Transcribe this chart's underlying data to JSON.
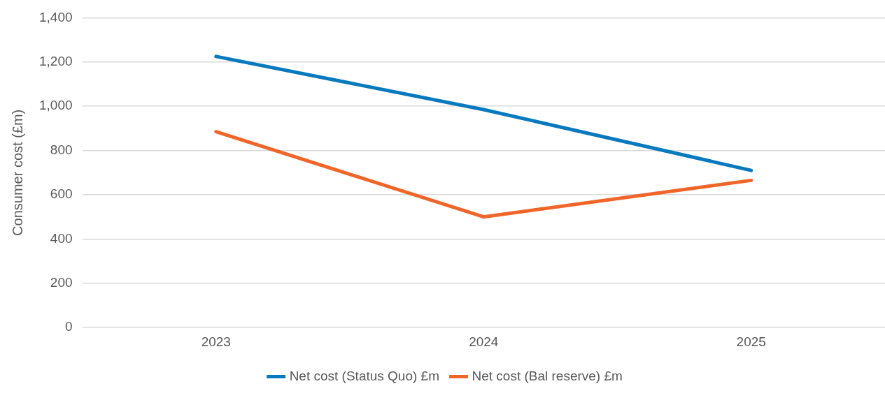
{
  "chart_data": {
    "type": "line",
    "ylabel": "Consumer cost (£m)",
    "categories": [
      "2023",
      "2024",
      "2025"
    ],
    "series": [
      {
        "name": "Net cost (Status Quo) £m",
        "color": "#0779bf",
        "values": [
          1225,
          985,
          710
        ]
      },
      {
        "name": "Net cost (Bal reserve) £m",
        "color": "#f0652a",
        "values": [
          885,
          500,
          665
        ]
      }
    ],
    "ylim": [
      0,
      1400
    ],
    "yticks": [
      0,
      200,
      400,
      600,
      800,
      {
        "value": 1000,
        "label": "1,000"
      },
      {
        "value": 1200,
        "label": "1,200"
      },
      {
        "value": 1400,
        "label": "1,400"
      }
    ],
    "grid": "y",
    "legend": "bottom",
    "marker": "none",
    "line_style": "solid"
  }
}
